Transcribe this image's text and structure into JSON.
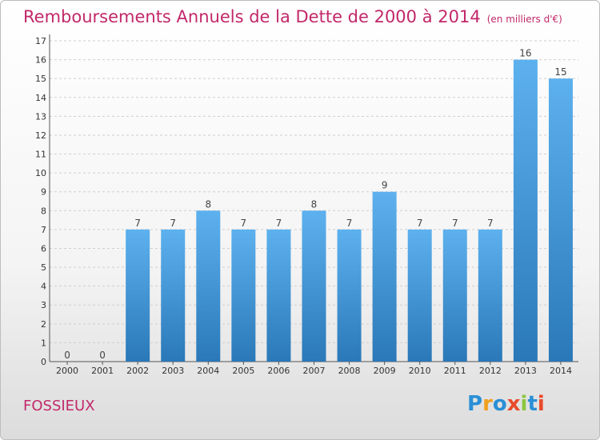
{
  "title": "Remboursements Annuels de la Dette de 2000 à 2014",
  "subtitle": "(en milliers d'€)",
  "commune": "FOSSIEUX",
  "logo": {
    "letters": [
      "P",
      "r",
      "o",
      "x",
      "i",
      "t",
      "i"
    ],
    "colors": [
      "#2a8fd6",
      "#f0a020",
      "#2a8fd6",
      "#e84a2a",
      "#8cc63f",
      "#2a8fd6",
      "#e84a2a"
    ]
  },
  "chart_data": {
    "type": "bar",
    "categories": [
      "2000",
      "2001",
      "2002",
      "2003",
      "2004",
      "2005",
      "2006",
      "2007",
      "2008",
      "2009",
      "2010",
      "2011",
      "2012",
      "2013",
      "2014"
    ],
    "values": [
      0,
      0,
      7,
      7,
      8,
      7,
      7,
      8,
      7,
      9,
      7,
      7,
      7,
      16,
      15
    ],
    "ylim": [
      0,
      17
    ],
    "yticks": [
      "0",
      "1",
      "2",
      "3",
      "4",
      "5",
      "6",
      "7",
      "8",
      "9",
      "10",
      "11",
      "12",
      "13",
      "14",
      "15",
      "16",
      "17"
    ],
    "grid": true,
    "bar_color": "#4aa3e4"
  }
}
